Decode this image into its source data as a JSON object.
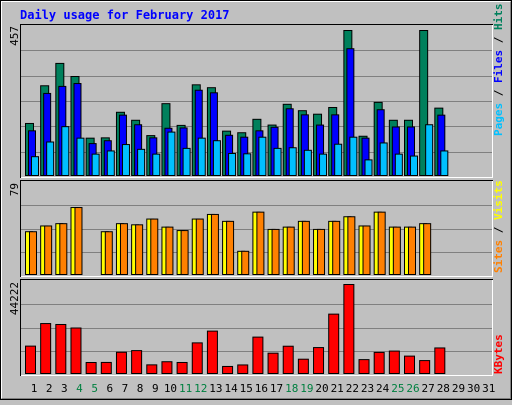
{
  "chart_data": [
    {
      "type": "bar",
      "title": "Daily usage for February 2017",
      "categories": [
        "1",
        "2",
        "3",
        "4",
        "5",
        "6",
        "7",
        "8",
        "9",
        "10",
        "11",
        "12",
        "13",
        "14",
        "15",
        "16",
        "17",
        "18",
        "19",
        "20",
        "21",
        "22",
        "23",
        "24",
        "25",
        "26",
        "27",
        "28",
        "29",
        "30",
        "31"
      ],
      "weekend_days": [
        "4",
        "5",
        "11",
        "12",
        "18",
        "19",
        "25",
        "26"
      ],
      "ylim": [
        0,
        457
      ],
      "y_max_label": "457",
      "legend": [
        "Pages",
        "Files",
        "Hits"
      ],
      "legend_separator": " / ",
      "series": [
        {
          "name": "Hits",
          "values": [
            166,
            284,
            354,
            313,
            120,
            121,
            201,
            176,
            128,
            228,
            160,
            287,
            278,
            142,
            137,
            179,
            161,
            226,
            206,
            195,
            216,
            457,
            126,
            232,
            176,
            176,
            457,
            214,
            0,
            0,
            0
          ]
        },
        {
          "name": "Files",
          "values": [
            143,
            260,
            282,
            291,
            103,
            112,
            192,
            162,
            121,
            151,
            152,
            270,
            262,
            129,
            123,
            143,
            154,
            212,
            193,
            161,
            193,
            400,
            120,
            209,
            155,
            155,
            0,
            192,
            0,
            0,
            0
          ]
        },
        {
          "name": "Pages",
          "values": [
            62,
            108,
            156,
            120,
            70,
            80,
            100,
            85,
            70,
            139,
            88,
            120,
            112,
            72,
            71,
            123,
            88,
            90,
            82,
            70,
            101,
            123,
            52,
            105,
            70,
            64,
            162,
            80,
            0,
            0,
            0
          ]
        }
      ]
    },
    {
      "type": "bar",
      "ylim": [
        0,
        79
      ],
      "y_max_label": "79",
      "legend": [
        "Sites",
        "Visits"
      ],
      "legend_separator": " / ",
      "series": [
        {
          "name": "Visits",
          "values": [
            38,
            43,
            45,
            59,
            0,
            38,
            45,
            44,
            49,
            42,
            39,
            49,
            53,
            47,
            21,
            55,
            40,
            42,
            47,
            40,
            47,
            51,
            43,
            55,
            42,
            42,
            45,
            0,
            0,
            0,
            0
          ]
        },
        {
          "name": "Sites",
          "values": [
            38,
            43,
            45,
            59,
            0,
            38,
            45,
            44,
            49,
            42,
            39,
            49,
            53,
            47,
            21,
            55,
            40,
            42,
            47,
            40,
            47,
            51,
            43,
            55,
            42,
            42,
            45,
            0,
            0,
            0,
            0
          ]
        }
      ]
    },
    {
      "type": "bar",
      "ylim": [
        0,
        44222
      ],
      "y_max_label": "44222",
      "legend": [
        "KBytes"
      ],
      "series": [
        {
          "name": "KBytes",
          "values": [
            13946,
            25032,
            24571,
            22848,
            5896,
            5931,
            10936,
            11739,
            4739,
            6278,
            5907,
            15542,
            21315,
            3955,
            4697,
            18373,
            10474,
            13893,
            7516,
            13232,
            29662,
            44222,
            7316,
            10861,
            11507,
            9035,
            6840,
            13046,
            0,
            0,
            0
          ]
        }
      ]
    }
  ],
  "colors": {
    "background": "#c0c0c0",
    "plot_bg": "#c0c0c0",
    "title": "#0000ff",
    "weekday_label": "#000000",
    "weekend_label": "#008040",
    "hits": "#00805c",
    "files": "#0000ff",
    "pages": "#00c0ff",
    "visits": "#ffff00",
    "sites": "#ff8000",
    "kbytes": "#ff0000"
  }
}
